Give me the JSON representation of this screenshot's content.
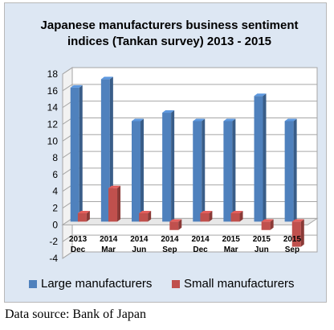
{
  "chart_data": {
    "type": "bar",
    "title": "Japanese manufacturers business sentiment\nindices  (Tankan survey) 2013 - 2015",
    "categories": [
      [
        "2013",
        "Dec"
      ],
      [
        "2014",
        "Mar"
      ],
      [
        "2014",
        "Jun"
      ],
      [
        "2014",
        "Sep"
      ],
      [
        "2014",
        "Dec"
      ],
      [
        "2015",
        "Mar"
      ],
      [
        "2015",
        "Jun"
      ],
      [
        "2015",
        "Sep"
      ]
    ],
    "series": [
      {
        "name": "Large manufacturers",
        "values": [
          16,
          17,
          12,
          13,
          12,
          12,
          15,
          12
        ],
        "color": "#4f81bd"
      },
      {
        "name": "Small manufacturers",
        "values": [
          1,
          4,
          1,
          -1,
          1,
          1,
          -1,
          -3
        ],
        "color": "#c0504d"
      }
    ],
    "ylim": [
      -4,
      18
    ],
    "yticks": [
      -4,
      -2,
      0,
      2,
      4,
      6,
      8,
      10,
      12,
      14,
      16,
      18
    ],
    "grid": true,
    "legend": "bottom",
    "xlabel": "",
    "ylabel": ""
  },
  "source_note": "Data source: Bank of Japan"
}
